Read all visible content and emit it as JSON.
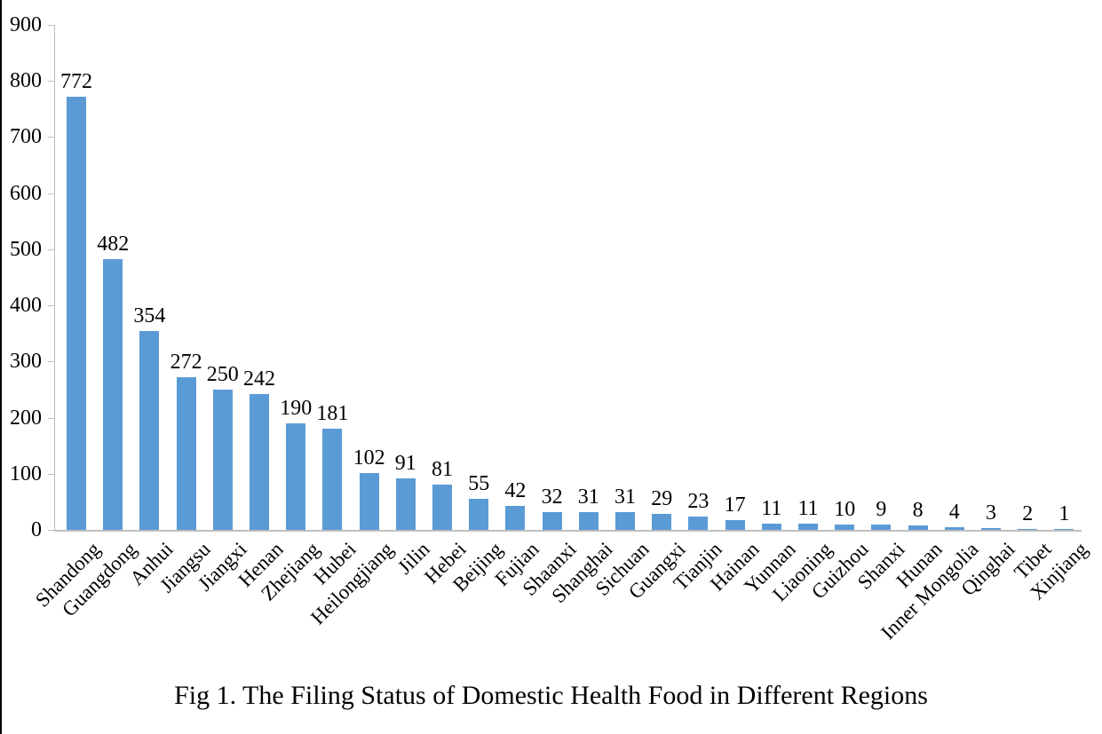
{
  "chart_data": {
    "type": "bar",
    "title": "Fig 1. The Filing Status of Domestic Health Food in Different Regions",
    "categories": [
      "Shandong",
      "Guangdong",
      "Anhui",
      "Jiangsu",
      "Jiangxi",
      "Henan",
      "Zhejiang",
      "Hubei",
      "Heilongjiang",
      "Jilin",
      "Hebei",
      "Beijing",
      "Fujian",
      "Shaanxi",
      "Shanghai",
      "Sichuan",
      "Guangxi",
      "Tianjin",
      "Hainan",
      "Yunnan",
      "Liaoning",
      "Guizhou",
      "Shanxi",
      "Hunan",
      "Inner Mongolia",
      "Qinghai",
      "Tibet",
      "Xinjiang"
    ],
    "values": [
      772,
      482,
      354,
      272,
      250,
      242,
      190,
      181,
      102,
      91,
      81,
      55,
      42,
      32,
      31,
      31,
      29,
      23,
      17,
      11,
      11,
      10,
      9,
      8,
      4,
      3,
      2,
      1
    ],
    "xlabel": "",
    "ylabel": "",
    "ylim": [
      0,
      900
    ],
    "yticks": [
      0,
      100,
      200,
      300,
      400,
      500,
      600,
      700,
      800,
      900
    ],
    "grid": false,
    "legend_position": "none",
    "show_value_labels": true,
    "x_label_rotation_deg": 45,
    "bar_color": "#5B9BD5",
    "axis_color": "#BFBFBF",
    "text_color": "#000000"
  }
}
